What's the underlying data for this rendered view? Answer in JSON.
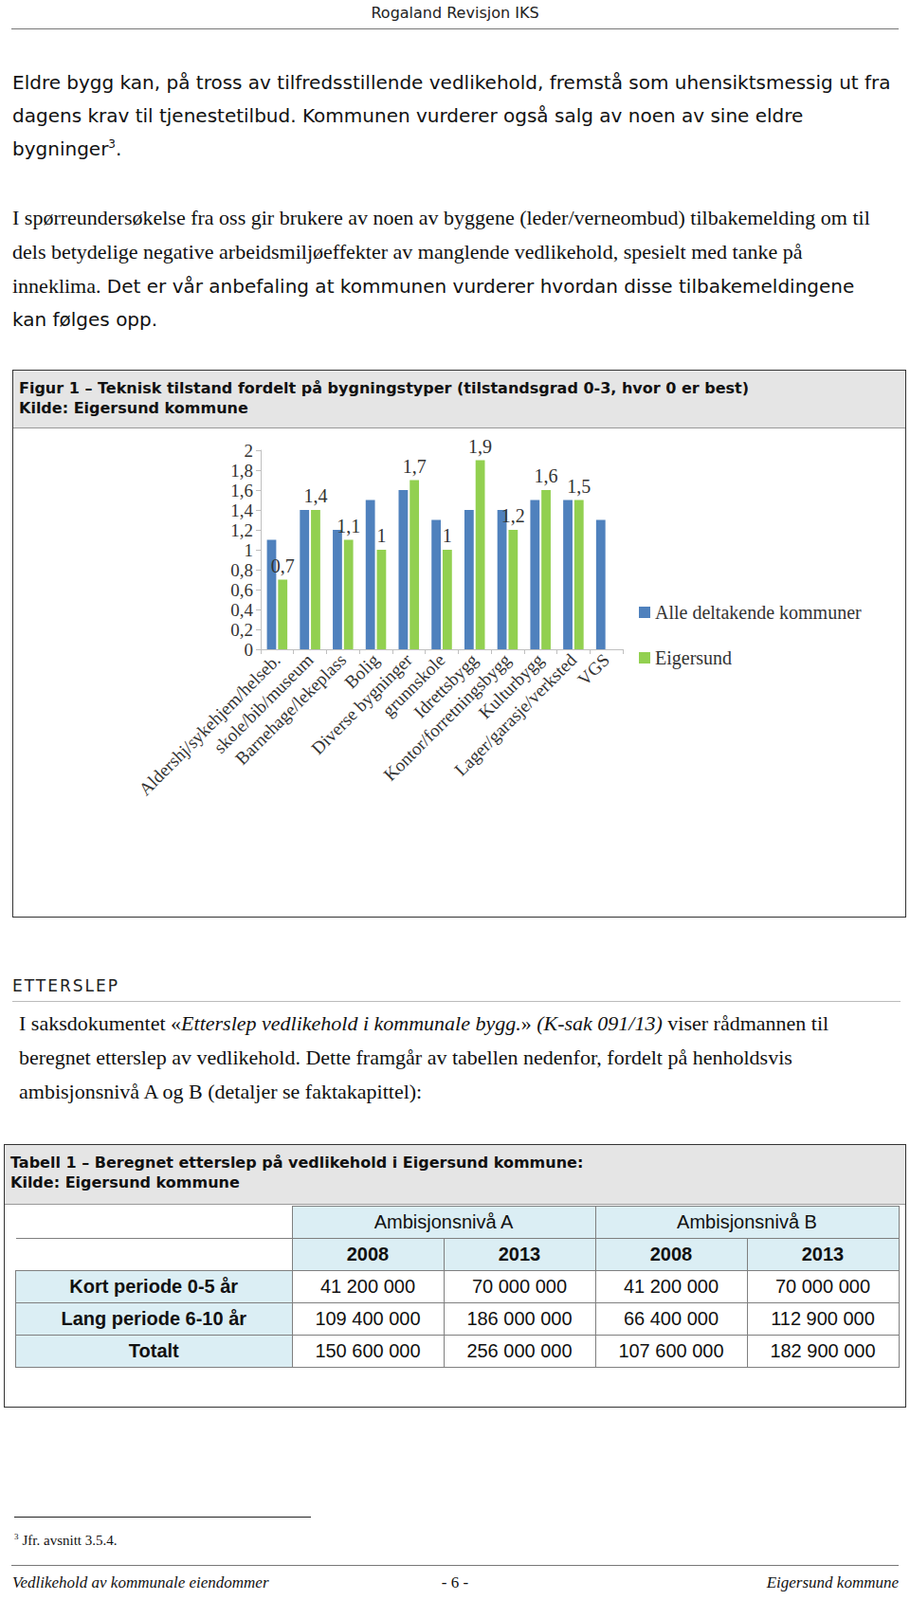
{
  "document": {
    "header": "Rogaland Revisjon IKS",
    "paragraphs": [
      {
        "segments": [
          {
            "text": "Eldre bygg kan, på tross av tilfredsstillende vedlikehold, fremstå som uhensiktsmessig ut fra dagens krav til tjenestetilbud. Kommunen vurderer også salg av noen av sine eldre bygninger"
          },
          {
            "text": "3",
            "superscript": true
          },
          {
            "text": "."
          }
        ]
      },
      {
        "segments": [
          {
            "text": "I spørreundersøkelse fra oss gir brukere av noen av byggene (leder/verneombud) tilbakemelding om til dels betydelige negative arbeidsmiljøeffekter av manglende vedlikehold, spesielt med tanke på inneklima."
          },
          {
            "text": " Det er vår anbefaling at kommunen vurderer hvordan disse tilbakemeldingene kan følges opp."
          }
        ]
      }
    ],
    "figure": {
      "caption": "Figur  1 – Teknisk tilstand fordelt på bygningstyper (tilstandsgrad 0-3, hvor 0 er best)",
      "source": "Kilde: Eigersund kommune"
    },
    "section": {
      "heading": "ETTERSLEP",
      "segments": [
        {
          "text": "I saksdokumentet «"
        },
        {
          "text": "Etterslep vedlikehold i kommunale bygg.",
          "italic": true
        },
        {
          "text": "» "
        },
        {
          "text": "(K-sak 091/13)",
          "italic": true
        },
        {
          "text": " viser rådmannen til beregnet etterslep av vedlikehold. Dette framgår av tabellen nedenfor, fordelt på henholdsvis ambisjonsnivå A og B (detaljer se faktakapittel):"
        }
      ]
    },
    "table": {
      "caption": "Tabell 1 – Beregnet etterslep på vedlikehold i Eigersund kommune:",
      "source": "Kilde: Eigersund kommune",
      "group_headers": [
        "Ambisjonsnivå A",
        "Ambisjonsnivå B"
      ],
      "year_headers": [
        "2008",
        "2013",
        "2008",
        "2013"
      ],
      "rows": [
        [
          "Kort periode 0-5 år",
          "41 200 000",
          "70 000 000",
          "41 200 000",
          "70 000 000"
        ],
        [
          "Lang periode 6-10 år",
          "109 400 000",
          "186 000 000",
          "66 400 000",
          "112 900 000"
        ],
        [
          "Totalt",
          "150 600 000",
          "256 000 000",
          "107 600 000",
          "182 900 000"
        ]
      ]
    },
    "footnote": {
      "mark": "3",
      "text": "Jfr. avsnitt 3.5.4."
    },
    "footer": {
      "left": "Vedlikehold av kommunale eiendommer",
      "center": "- 6 -",
      "right": "Eigersund kommune"
    }
  },
  "chart_data": {
    "type": "bar",
    "categories": [
      "Aldershj/sykehjem/helseb.",
      "skole/bib/museum",
      "Barnehage/lekeplass",
      "Bolig",
      "Diverse bygninger",
      "grunnskole",
      "Idrettsbygg",
      "Kontor/forretningsbygg",
      "Kulturbygg",
      "Lager/garasje/verksted",
      "VGS"
    ],
    "series": [
      {
        "name": "Alle deltakende kommuner",
        "color": "#4f81bd",
        "values": [
          1.1,
          1.4,
          1.2,
          1.5,
          1.6,
          1.3,
          1.4,
          1.4,
          1.5,
          1.5,
          1.3
        ]
      },
      {
        "name": "Eigersund",
        "color": "#92d050",
        "data_labels": true,
        "values": [
          0.7,
          1.4,
          1.1,
          1,
          1.7,
          1,
          1.9,
          1.2,
          1.6,
          1.5,
          null
        ],
        "value_labels": [
          "0,7",
          "1,4",
          "1,1",
          "1",
          "1,7",
          "1",
          "1,9",
          "1,2",
          "1,6",
          "1,5",
          null
        ]
      }
    ],
    "ylim": [
      0,
      2
    ],
    "yticks": [
      0,
      {
        "value": 0.2,
        "label": "0,2"
      },
      {
        "value": 0.4,
        "label": "0,4"
      },
      {
        "value": 0.6,
        "label": "0,6"
      },
      {
        "value": 0.8,
        "label": "0,8"
      },
      1,
      {
        "value": 1.2,
        "label": "1,2"
      },
      {
        "value": 1.4,
        "label": "1,4"
      },
      {
        "value": 1.6,
        "label": "1,6"
      },
      {
        "value": 1.8,
        "label": "1,8"
      },
      2
    ],
    "grid": false,
    "legend": "right"
  }
}
